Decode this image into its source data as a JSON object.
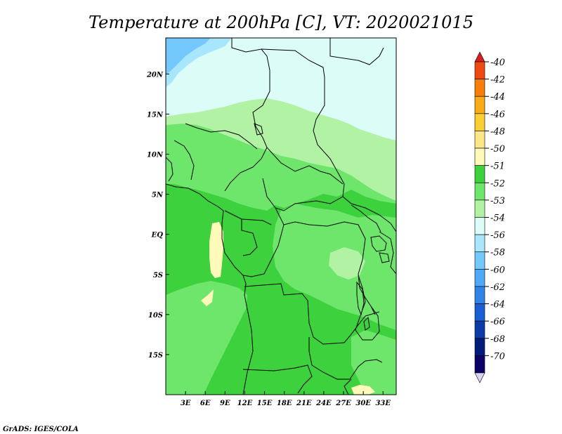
{
  "chart_data": {
    "type": "heatmap",
    "title": "Temperature at 200hPa [C], VT: 2020021015",
    "variable": "Temperature",
    "level": "200hPa",
    "units": "C",
    "valid_time": "2020021015",
    "x_ticks": [
      "3E",
      "6E",
      "9E",
      "12E",
      "15E",
      "18E",
      "21E",
      "24E",
      "27E",
      "30E",
      "33E"
    ],
    "x_tick_values": [
      3,
      6,
      9,
      12,
      15,
      18,
      21,
      24,
      27,
      30,
      33
    ],
    "y_ticks": [
      "20N",
      "15N",
      "10N",
      "5N",
      "EQ",
      "5S",
      "10S",
      "15S"
    ],
    "y_tick_values": [
      20,
      15,
      10,
      5,
      0,
      -5,
      -10,
      -15
    ],
    "lon_range": [
      0,
      35
    ],
    "lat_range": [
      -20,
      24.5
    ],
    "colorbar": {
      "levels": [
        "-40",
        "-42",
        "-44",
        "-46",
        "-48",
        "-50",
        "-51",
        "-52",
        "-53",
        "-54",
        "-56",
        "-58",
        "-60",
        "-62",
        "-64",
        "-66",
        "-68",
        "-70"
      ],
      "colors": [
        "#d62020",
        "#ef4a14",
        "#f97d09",
        "#fbaa17",
        "#f8cf35",
        "#fde688",
        "#fffab9",
        "#3dd13d",
        "#6ee66b",
        "#b2f2a5",
        "#dcfcf8",
        "#a8e6fd",
        "#73c9fc",
        "#4fa8f5",
        "#3283e6",
        "#1a5fd2",
        "#0b3ca6",
        "#001c7a",
        "#0b0068",
        "#dad4f3"
      ]
    },
    "credit": "GrADS: IGES/COLA"
  },
  "colors": {
    "coast": "#000000",
    "frame": "#000000"
  }
}
